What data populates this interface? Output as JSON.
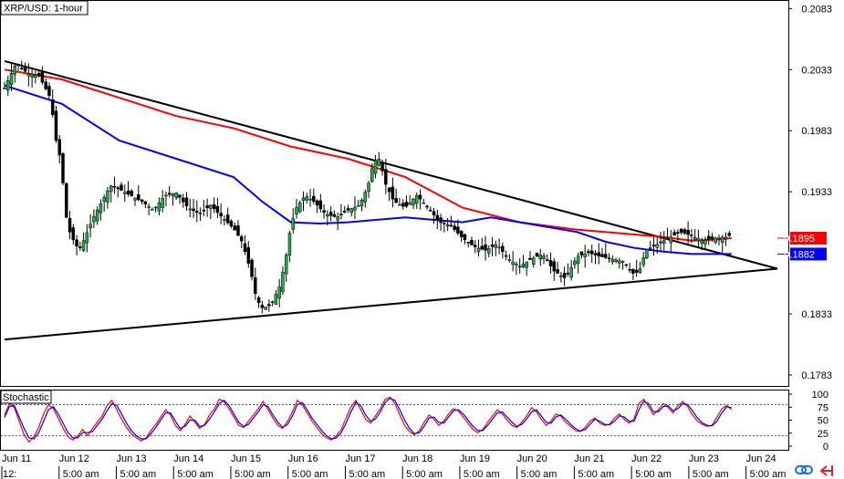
{
  "chart_data": [
    {
      "type": "candlestick",
      "title": "XRP/USD: 1-hour",
      "y_ticks": [
        "0.2083",
        "0.2033",
        "0.1983",
        "0.1933",
        "0.1833",
        "0.1783"
      ],
      "ylim": [
        0.1774,
        0.209
      ],
      "price_tags": [
        {
          "label": "0.1895",
          "value": 0.1895,
          "color": "#ff0000"
        },
        {
          "label": "0.1882",
          "value": 0.1882,
          "color": "#0000ff"
        }
      ],
      "x_date_labels": [
        "Jun 11",
        "Jun 12",
        "Jun 13",
        "Jun 14",
        "Jun 15",
        "Jun 16",
        "Jun 17",
        "Jun 18",
        "Jun 19",
        "Jun 20",
        "Jun 21",
        "Jun 22",
        "Jun 23",
        "Jun 24"
      ],
      "x_time_labels": [
        "12:",
        "5:00 am",
        "5:00 am",
        "5:00 am",
        "5:00 am",
        "5:00 am",
        "5:00 am",
        "5:00 am",
        "5:00 am",
        "5:00 am",
        "5:00 am",
        "5:00 am",
        "5:00 am",
        "5:00 am"
      ],
      "x_day_range": [
        0,
        13.5
      ],
      "series": [
        {
          "kind": "price",
          "color": "#000000",
          "points": [
            [
              0.0,
              0.2018
            ],
            [
              0.2,
              0.2038
            ],
            [
              0.4,
              0.203
            ],
            [
              0.6,
              0.2028
            ],
            [
              0.8,
              0.201
            ],
            [
              0.9,
              0.1975
            ],
            [
              1.0,
              0.1955
            ],
            [
              1.05,
              0.1918
            ],
            [
              1.15,
              0.1898
            ],
            [
              1.3,
              0.1885
            ],
            [
              1.4,
              0.1895
            ],
            [
              1.55,
              0.1912
            ],
            [
              1.7,
              0.1925
            ],
            [
              1.85,
              0.1938
            ],
            [
              2.0,
              0.1935
            ],
            [
              2.2,
              0.193
            ],
            [
              2.4,
              0.1925
            ],
            [
              2.6,
              0.1918
            ],
            [
              2.8,
              0.193
            ],
            [
              3.0,
              0.1932
            ],
            [
              3.2,
              0.192
            ],
            [
              3.4,
              0.1915
            ],
            [
              3.6,
              0.1922
            ],
            [
              3.8,
              0.1912
            ],
            [
              4.0,
              0.1903
            ],
            [
              4.15,
              0.1892
            ],
            [
              4.3,
              0.1868
            ],
            [
              4.4,
              0.1845
            ],
            [
              4.5,
              0.1838
            ],
            [
              4.65,
              0.184
            ],
            [
              4.8,
              0.1855
            ],
            [
              4.9,
              0.1875
            ],
            [
              5.0,
              0.1905
            ],
            [
              5.1,
              0.192
            ],
            [
              5.25,
              0.193
            ],
            [
              5.4,
              0.1925
            ],
            [
              5.6,
              0.1915
            ],
            [
              5.8,
              0.1912
            ],
            [
              6.0,
              0.1918
            ],
            [
              6.2,
              0.1922
            ],
            [
              6.35,
              0.1938
            ],
            [
              6.45,
              0.1958
            ],
            [
              6.55,
              0.196
            ],
            [
              6.65,
              0.194
            ],
            [
              6.8,
              0.1925
            ],
            [
              7.0,
              0.192
            ],
            [
              7.2,
              0.193
            ],
            [
              7.4,
              0.192
            ],
            [
              7.6,
              0.1908
            ],
            [
              7.8,
              0.1905
            ],
            [
              8.0,
              0.1895
            ],
            [
              8.2,
              0.1888
            ],
            [
              8.4,
              0.1885
            ],
            [
              8.6,
              0.189
            ],
            [
              8.8,
              0.1878
            ],
            [
              9.0,
              0.1872
            ],
            [
              9.2,
              0.1878
            ],
            [
              9.4,
              0.1882
            ],
            [
              9.6,
              0.1868
            ],
            [
              9.8,
              0.1862
            ],
            [
              10.0,
              0.188
            ],
            [
              10.2,
              0.1883
            ],
            [
              10.4,
              0.188
            ],
            [
              10.6,
              0.1878
            ],
            [
              10.8,
              0.1876
            ],
            [
              11.0,
              0.1865
            ],
            [
              11.1,
              0.187
            ],
            [
              11.2,
              0.1885
            ],
            [
              11.4,
              0.189
            ],
            [
              11.6,
              0.1895
            ],
            [
              11.8,
              0.19
            ],
            [
              12.0,
              0.1897
            ],
            [
              12.2,
              0.1893
            ],
            [
              12.4,
              0.1895
            ],
            [
              12.6,
              0.1896
            ],
            [
              12.7,
              0.1898
            ]
          ]
        },
        {
          "kind": "moving_average",
          "color": "#ff0000",
          "points": [
            [
              0.0,
              0.2033
            ],
            [
              1.0,
              0.2025
            ],
            [
              2.0,
              0.201
            ],
            [
              3.0,
              0.1995
            ],
            [
              4.0,
              0.1985
            ],
            [
              5.0,
              0.197
            ],
            [
              6.0,
              0.196
            ],
            [
              7.0,
              0.1945
            ],
            [
              8.0,
              0.192
            ],
            [
              9.0,
              0.1908
            ],
            [
              10.0,
              0.1902
            ],
            [
              11.0,
              0.1898
            ],
            [
              11.5,
              0.1896
            ],
            [
              12.0,
              0.1893
            ],
            [
              12.5,
              0.1894
            ],
            [
              12.7,
              0.1895
            ]
          ]
        },
        {
          "kind": "moving_average",
          "color": "#0000ff",
          "points": [
            [
              0.0,
              0.202
            ],
            [
              1.0,
              0.2005
            ],
            [
              2.0,
              0.1975
            ],
            [
              3.0,
              0.196
            ],
            [
              4.0,
              0.1945
            ],
            [
              4.5,
              0.1925
            ],
            [
              5.0,
              0.1908
            ],
            [
              5.5,
              0.1907
            ],
            [
              6.0,
              0.1908
            ],
            [
              7.0,
              0.1912
            ],
            [
              8.0,
              0.1908
            ],
            [
              8.5,
              0.1912
            ],
            [
              9.0,
              0.1908
            ],
            [
              10.0,
              0.19
            ],
            [
              10.5,
              0.1892
            ],
            [
              11.0,
              0.1887
            ],
            [
              11.5,
              0.1884
            ],
            [
              12.0,
              0.1882
            ],
            [
              12.7,
              0.1882
            ]
          ]
        }
      ],
      "trendlines": [
        {
          "color": "#000000",
          "from": [
            0.0,
            0.204
          ],
          "to": [
            13.5,
            0.187
          ]
        },
        {
          "color": "#000000",
          "from": [
            0.0,
            0.1812
          ],
          "to": [
            13.5,
            0.187
          ]
        }
      ]
    },
    {
      "type": "line",
      "title": "Stochastic",
      "y_ticks": [
        "100",
        "75",
        "50",
        "25",
        "0"
      ],
      "ylim": [
        0,
        100
      ],
      "levels": [
        80,
        20
      ],
      "series": [
        {
          "kind": "stochastic_k",
          "color": "#ff0000",
          "values": [
            60,
            82,
            74,
            48,
            22,
            8,
            18,
            36,
            62,
            80,
            72,
            54,
            34,
            18,
            12,
            20,
            32,
            20,
            34,
            46,
            58,
            78,
            88,
            70,
            52,
            36,
            24,
            16,
            10,
            16,
            30,
            42,
            56,
            70,
            60,
            40,
            30,
            42,
            58,
            46,
            34,
            42,
            60,
            72,
            90,
            86,
            72,
            56,
            40,
            36,
            48,
            60,
            72,
            86,
            70,
            54,
            40,
            34,
            48,
            66,
            88,
            80,
            64,
            48,
            36,
            24,
            16,
            12,
            20,
            32,
            54,
            76,
            88,
            70,
            52,
            44,
            58,
            72,
            90,
            94,
            82,
            60,
            40,
            28,
            22,
            30,
            46,
            60,
            52,
            40,
            48,
            62,
            72,
            68,
            56,
            44,
            32,
            26,
            32,
            46,
            58,
            70,
            62,
            50,
            40,
            36,
            46,
            58,
            74,
            66,
            52,
            40,
            48,
            62,
            58,
            46,
            38,
            30,
            28,
            36,
            48,
            54,
            44,
            40,
            42,
            54,
            62,
            52,
            44,
            52,
            82,
            90,
            76,
            60,
            70,
            82,
            74,
            64,
            78,
            86,
            76,
            60,
            48,
            42,
            38,
            40,
            56,
            72,
            78,
            70
          ]
        },
        {
          "kind": "stochastic_d",
          "color": "#0000ff",
          "values": [
            55,
            76,
            78,
            56,
            34,
            16,
            14,
            26,
            48,
            70,
            76,
            62,
            44,
            26,
            16,
            16,
            26,
            26,
            28,
            40,
            52,
            68,
            82,
            78,
            62,
            44,
            30,
            20,
            14,
            14,
            24,
            36,
            50,
            64,
            64,
            48,
            34,
            38,
            50,
            50,
            38,
            40,
            52,
            66,
            82,
            88,
            78,
            62,
            46,
            38,
            42,
            54,
            66,
            80,
            76,
            60,
            46,
            36,
            42,
            58,
            80,
            84,
            70,
            54,
            42,
            30,
            20,
            14,
            16,
            26,
            44,
            66,
            84,
            78,
            60,
            48,
            52,
            66,
            84,
            92,
            88,
            70,
            50,
            34,
            24,
            26,
            38,
            54,
            56,
            46,
            44,
            56,
            68,
            70,
            62,
            50,
            38,
            30,
            30,
            40,
            52,
            64,
            66,
            56,
            46,
            38,
            42,
            52,
            66,
            70,
            58,
            46,
            44,
            56,
            60,
            52,
            42,
            34,
            29,
            32,
            42,
            52,
            48,
            42,
            41,
            48,
            58,
            56,
            48,
            48,
            70,
            86,
            82,
            66,
            66,
            76,
            78,
            68,
            72,
            82,
            80,
            68,
            54,
            45,
            40,
            39,
            48,
            64,
            76,
            74
          ]
        }
      ]
    }
  ],
  "toolbar": {
    "icons": [
      "link-icon",
      "arrow-icon"
    ],
    "colors": {
      "link": "#1a6fd6",
      "arrow": "#e0222a"
    }
  }
}
